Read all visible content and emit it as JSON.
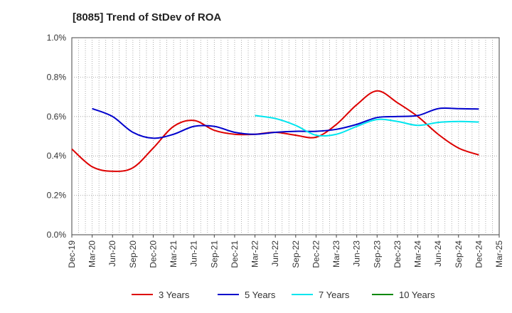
{
  "chart_data": {
    "type": "line",
    "title": "[8085]  Trend of StDev of ROA",
    "xlabel": "",
    "ylabel": "",
    "ylim": [
      0,
      1.0
    ],
    "y_ticks": [
      "0.0%",
      "0.2%",
      "0.4%",
      "0.6%",
      "0.8%",
      "1.0%"
    ],
    "y_tick_values": [
      0,
      0.2,
      0.4,
      0.6,
      0.8,
      1.0
    ],
    "categories": [
      "Dec-19",
      "Mar-20",
      "Jun-20",
      "Sep-20",
      "Dec-20",
      "Mar-21",
      "Jun-21",
      "Sep-21",
      "Dec-21",
      "Mar-22",
      "Jun-22",
      "Sep-22",
      "Dec-22",
      "Mar-23",
      "Jun-23",
      "Sep-23",
      "Dec-23",
      "Mar-24",
      "Jun-24",
      "Sep-24",
      "Dec-24",
      "Mar-25"
    ],
    "grid": true,
    "legend_position": "bottom",
    "series": [
      {
        "name": "3 Years",
        "color": "#dd0000",
        "values": [
          0.435,
          0.345,
          0.322,
          0.34,
          0.44,
          0.55,
          0.58,
          0.53,
          0.51,
          0.51,
          0.52,
          0.505,
          0.495,
          0.56,
          0.66,
          0.73,
          0.67,
          0.6,
          0.51,
          0.44,
          0.405,
          null
        ]
      },
      {
        "name": "5 Years",
        "color": "#0000cc",
        "values": [
          null,
          0.64,
          0.6,
          0.52,
          0.49,
          0.51,
          0.55,
          0.55,
          0.52,
          0.51,
          0.52,
          0.525,
          0.525,
          0.535,
          0.56,
          0.595,
          0.6,
          0.605,
          0.64,
          0.64,
          0.638,
          null
        ]
      },
      {
        "name": "7 Years",
        "color": "#00e5ee",
        "values": [
          null,
          null,
          null,
          null,
          null,
          null,
          null,
          null,
          null,
          0.605,
          0.59,
          0.555,
          0.505,
          0.51,
          0.55,
          0.585,
          0.575,
          0.555,
          0.57,
          0.575,
          0.572,
          null
        ]
      },
      {
        "name": "10 Years",
        "color": "#008800",
        "values": [
          null,
          null,
          null,
          null,
          null,
          null,
          null,
          null,
          null,
          null,
          null,
          null,
          null,
          null,
          null,
          null,
          null,
          null,
          null,
          null,
          null,
          null
        ]
      }
    ]
  }
}
